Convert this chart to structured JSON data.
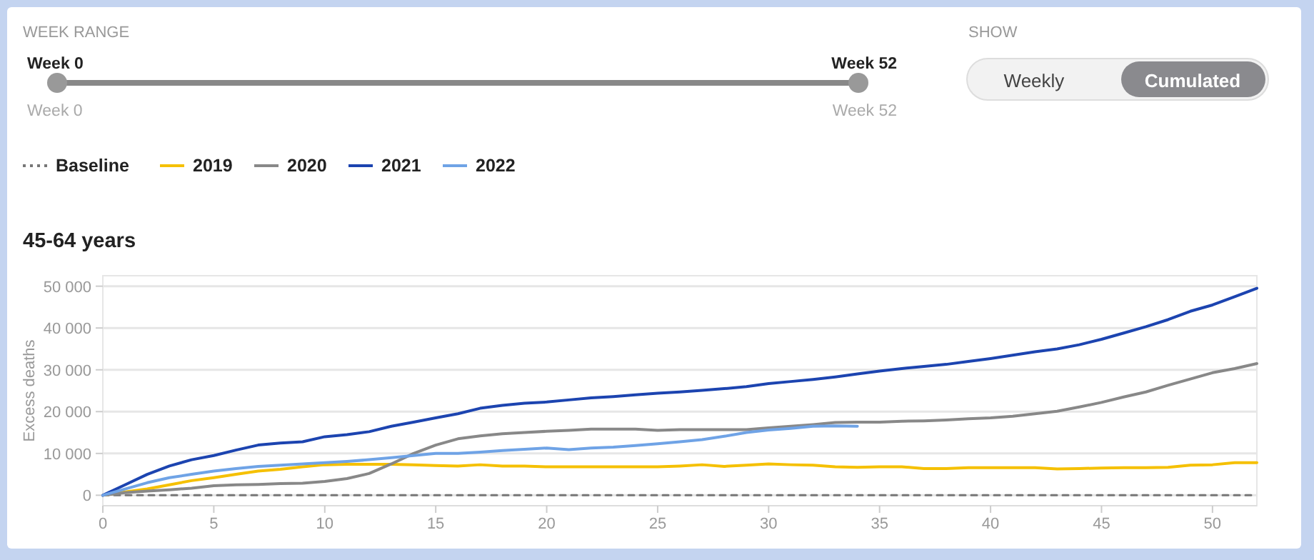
{
  "chart_data": {
    "type": "line",
    "title": "45-64 years",
    "ylabel": "Excess deaths",
    "annotations": [
      "WEEK RANGE",
      "Week 0",
      "Week 52",
      "Week 0",
      "Week 52",
      "SHOW",
      "Weekly",
      "Cumulated"
    ],
    "x": [
      0,
      1,
      2,
      3,
      4,
      5,
      6,
      7,
      8,
      9,
      10,
      11,
      12,
      13,
      14,
      15,
      16,
      17,
      18,
      19,
      20,
      21,
      22,
      23,
      24,
      25,
      26,
      27,
      28,
      29,
      30,
      31,
      32,
      33,
      34,
      35,
      36,
      37,
      38,
      39,
      40,
      41,
      42,
      43,
      44,
      45,
      46,
      47,
      48,
      49,
      50,
      51,
      52
    ],
    "xlim": [
      0,
      52
    ],
    "xticks": [
      0,
      5,
      10,
      15,
      20,
      25,
      30,
      35,
      40,
      45,
      50
    ],
    "ylim": [
      -2500,
      52500
    ],
    "yticks": [
      0,
      {
        "value": 10000,
        "label": "10 000"
      },
      {
        "value": 20000,
        "label": "20 000"
      },
      {
        "value": 30000,
        "label": "30 000"
      },
      {
        "value": 40000,
        "label": "40 000"
      },
      {
        "value": 50000,
        "label": "50 000"
      }
    ],
    "grid": "y",
    "legend": "top left",
    "marker": "none",
    "series": [
      {
        "name": "Baseline",
        "color": "#777777",
        "line_style": "dotted",
        "values": [
          0,
          0,
          0,
          0,
          0,
          0,
          0,
          0,
          0,
          0,
          0,
          0,
          0,
          0,
          0,
          0,
          0,
          0,
          0,
          0,
          0,
          0,
          0,
          0,
          0,
          0,
          0,
          0,
          0,
          0,
          0,
          0,
          0,
          0,
          0,
          0,
          0,
          0,
          0,
          0,
          0,
          0,
          0,
          0,
          0,
          0,
          0,
          0,
          0,
          0,
          0,
          0,
          0
        ]
      },
      {
        "name": "2019",
        "color": "#f5c000",
        "line_style": "solid",
        "values": [
          0,
          800,
          1500,
          2500,
          3500,
          4200,
          5000,
          5800,
          6200,
          6800,
          7300,
          7400,
          7400,
          7400,
          7300,
          7100,
          7000,
          7300,
          7000,
          7000,
          6800,
          6800,
          6800,
          6800,
          6800,
          6800,
          7000,
          7300,
          6900,
          7200,
          7500,
          7300,
          7200,
          6800,
          6700,
          6800,
          6800,
          6400,
          6400,
          6600,
          6600,
          6600,
          6600,
          6300,
          6400,
          6500,
          6600,
          6600,
          6700,
          7200,
          7300,
          7800,
          7800
        ]
      },
      {
        "name": "2020",
        "color": "#888888",
        "line_style": "solid",
        "values": [
          0,
          600,
          1000,
          1300,
          1700,
          2300,
          2500,
          2600,
          2800,
          2900,
          3300,
          4000,
          5200,
          7500,
          10000,
          12000,
          13500,
          14200,
          14700,
          15000,
          15300,
          15500,
          15800,
          15800,
          15800,
          15500,
          15700,
          15700,
          15700,
          15700,
          16100,
          16500,
          16900,
          17400,
          17500,
          17500,
          17700,
          17800,
          18000,
          18300,
          18500,
          18900,
          19500,
          20100,
          21100,
          22200,
          23500,
          24700,
          26300,
          27800,
          29300,
          30300,
          31500
        ]
      },
      {
        "name": "2021",
        "color": "#1c44b0",
        "line_style": "solid",
        "values": [
          0,
          2500,
          5000,
          7000,
          8500,
          9500,
          10800,
          12000,
          12500,
          12800,
          14000,
          14500,
          15200,
          16500,
          17500,
          18500,
          19500,
          20800,
          21500,
          22000,
          22300,
          22800,
          23300,
          23600,
          24000,
          24400,
          24700,
          25100,
          25500,
          26000,
          26700,
          27200,
          27700,
          28300,
          29000,
          29700,
          30300,
          30800,
          31300,
          32000,
          32700,
          33500,
          34300,
          35000,
          36000,
          37300,
          38800,
          40300,
          42000,
          44000,
          45500,
          47500,
          49500
        ]
      },
      {
        "name": "2022",
        "color": "#6fa3e6",
        "line_style": "solid",
        "values": [
          0,
          1500,
          3000,
          4200,
          5000,
          5800,
          6400,
          6900,
          7200,
          7500,
          7800,
          8100,
          8500,
          9000,
          9500,
          10000,
          10000,
          10300,
          10700,
          11000,
          11300,
          10900,
          11300,
          11500,
          11900,
          12300,
          12800,
          13300,
          14100,
          15000,
          15600,
          16000,
          16500,
          16600,
          16500,
          null,
          null,
          null,
          null,
          null,
          null,
          null,
          null,
          null,
          null,
          null,
          null,
          null,
          null,
          null,
          null,
          null,
          null
        ]
      }
    ]
  }
}
